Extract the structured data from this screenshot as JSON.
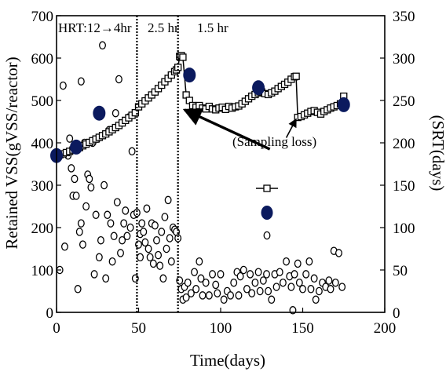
{
  "chart_data": {
    "type": "scatter",
    "xlabel": "Time(days)",
    "ylabel_left": "Retained VSS(gVSS/reactor)",
    "ylabel_right": "(SRT(days)",
    "xlim": [
      0,
      200
    ],
    "ylim_left": [
      0,
      700
    ],
    "ylim_right": [
      0,
      350
    ],
    "x_ticks": [
      0,
      50,
      100,
      150,
      200
    ],
    "y_left_ticks": [
      0,
      100,
      200,
      300,
      400,
      500,
      600,
      700
    ],
    "y_right_ticks": [
      0,
      50,
      100,
      150,
      200,
      250,
      300,
      350
    ],
    "grid": false,
    "phase_lines": [
      49,
      74
    ],
    "phase_labels": [
      "HRT:12→4hr",
      "2.5 hr",
      "1.5 hr"
    ],
    "annotation": "(Sampling loss)",
    "series": [
      {
        "marker": "open-square-line",
        "axis": "left",
        "points": [
          [
            0,
            370
          ],
          [
            2,
            372
          ],
          [
            4,
            374
          ],
          [
            6,
            377
          ],
          [
            8,
            380
          ],
          [
            10,
            383
          ],
          [
            12,
            386
          ],
          [
            14,
            389
          ],
          [
            16,
            393
          ],
          [
            18,
            397
          ],
          [
            20,
            401
          ],
          [
            22,
            405
          ],
          [
            24,
            409
          ],
          [
            26,
            413
          ],
          [
            28,
            417
          ],
          [
            30,
            421
          ],
          [
            32,
            426
          ],
          [
            34,
            431
          ],
          [
            36,
            436
          ],
          [
            38,
            441
          ],
          [
            40,
            447
          ],
          [
            42,
            453
          ],
          [
            44,
            459
          ],
          [
            46,
            465
          ],
          [
            48,
            471
          ],
          [
            50,
            485
          ],
          [
            52,
            492
          ],
          [
            54,
            499
          ],
          [
            56,
            506
          ],
          [
            58,
            513
          ],
          [
            60,
            520
          ],
          [
            62,
            528
          ],
          [
            64,
            536
          ],
          [
            66,
            544
          ],
          [
            68,
            552
          ],
          [
            70,
            560
          ],
          [
            72,
            568
          ],
          [
            73,
            572
          ],
          [
            74,
            578
          ],
          [
            75,
            604
          ],
          [
            76,
            606
          ],
          [
            77,
            602
          ],
          [
            79,
            513
          ],
          [
            81,
            500
          ],
          [
            83,
            488
          ],
          [
            85,
            484
          ],
          [
            87,
            488
          ],
          [
            89,
            482
          ],
          [
            91,
            480
          ],
          [
            93,
            486
          ],
          [
            95,
            480
          ],
          [
            97,
            478
          ],
          [
            99,
            482
          ],
          [
            101,
            484
          ],
          [
            103,
            479
          ],
          [
            105,
            486
          ],
          [
            107,
            482
          ],
          [
            109,
            485
          ],
          [
            111,
            487
          ],
          [
            113,
            492
          ],
          [
            115,
            498
          ],
          [
            117,
            504
          ],
          [
            119,
            510
          ],
          [
            121,
            514
          ],
          [
            123,
            518
          ],
          [
            125,
            520
          ],
          [
            127,
            516
          ],
          [
            129,
            514
          ],
          [
            131,
            518
          ],
          [
            133,
            522
          ],
          [
            135,
            528
          ],
          [
            137,
            533
          ],
          [
            139,
            538
          ],
          [
            141,
            543
          ],
          [
            143,
            550
          ],
          [
            145,
            556
          ],
          [
            146,
            557
          ],
          [
            147,
            460
          ],
          [
            149,
            462
          ],
          [
            151,
            466
          ],
          [
            153,
            470
          ],
          [
            155,
            474
          ],
          [
            157,
            476
          ],
          [
            159,
            472
          ],
          [
            161,
            468
          ],
          [
            163,
            474
          ],
          [
            165,
            478
          ],
          [
            167,
            482
          ],
          [
            169,
            485
          ],
          [
            171,
            488
          ],
          [
            173,
            492
          ],
          [
            175,
            510
          ]
        ]
      },
      {
        "marker": "filled-circle",
        "axis": "right",
        "points": [
          [
            0,
            185
          ],
          [
            12,
            195
          ],
          [
            26,
            235
          ],
          [
            81,
            280
          ],
          [
            123,
            265
          ],
          [
            175,
            245
          ]
        ]
      },
      {
        "marker": "open-circle",
        "axis": "left",
        "points": [
          [
            2,
            100
          ],
          [
            4,
            535
          ],
          [
            5,
            155
          ],
          [
            7,
            370
          ],
          [
            8,
            410
          ],
          [
            9,
            340
          ],
          [
            10,
            275
          ],
          [
            11,
            315
          ],
          [
            12,
            275
          ],
          [
            13,
            55
          ],
          [
            14,
            190
          ],
          [
            15,
            545
          ],
          [
            15,
            210
          ],
          [
            16,
            160
          ],
          [
            17,
            400
          ],
          [
            18,
            250
          ],
          [
            19,
            325
          ],
          [
            20,
            315
          ],
          [
            21,
            295
          ],
          [
            22,
            400
          ],
          [
            23,
            90
          ],
          [
            24,
            230
          ],
          [
            25,
            410
          ],
          [
            26,
            130
          ],
          [
            27,
            170
          ],
          [
            28,
            630
          ],
          [
            29,
            300
          ],
          [
            30,
            80
          ],
          [
            31,
            230
          ],
          [
            32,
            430
          ],
          [
            33,
            210
          ],
          [
            34,
            120
          ],
          [
            35,
            180
          ],
          [
            36,
            470
          ],
          [
            37,
            260
          ],
          [
            38,
            550
          ],
          [
            39,
            140
          ],
          [
            40,
            170
          ],
          [
            41,
            210
          ],
          [
            42,
            240
          ],
          [
            43,
            180
          ],
          [
            44,
            460
          ],
          [
            45,
            200
          ],
          [
            46,
            380
          ],
          [
            47,
            230
          ],
          [
            48,
            80
          ],
          [
            49,
            235
          ],
          [
            50,
            160
          ],
          [
            51,
            185
          ],
          [
            51,
            130
          ],
          [
            52,
            210
          ],
          [
            53,
            190
          ],
          [
            54,
            165
          ],
          [
            55,
            245
          ],
          [
            56,
            150
          ],
          [
            57,
            130
          ],
          [
            58,
            210
          ],
          [
            59,
            115
          ],
          [
            60,
            205
          ],
          [
            61,
            170
          ],
          [
            62,
            135
          ],
          [
            63,
            110
          ],
          [
            64,
            190
          ],
          [
            65,
            80
          ],
          [
            66,
            225
          ],
          [
            67,
            150
          ],
          [
            68,
            265
          ],
          [
            69,
            175
          ],
          [
            70,
            120
          ],
          [
            71,
            200
          ],
          [
            72,
            195
          ],
          [
            73,
            190
          ],
          [
            74,
            175
          ],
          [
            75,
            75
          ],
          [
            76,
            55
          ],
          [
            77,
            30
          ],
          [
            78,
            60
          ],
          [
            79,
            35
          ],
          [
            80,
            70
          ],
          [
            82,
            45
          ],
          [
            84,
            95
          ],
          [
            85,
            55
          ],
          [
            87,
            120
          ],
          [
            88,
            80
          ],
          [
            89,
            40
          ],
          [
            91,
            70
          ],
          [
            93,
            40
          ],
          [
            95,
            90
          ],
          [
            97,
            65
          ],
          [
            98,
            45
          ],
          [
            100,
            90
          ],
          [
            102,
            30
          ],
          [
            104,
            50
          ],
          [
            106,
            40
          ],
          [
            108,
            70
          ],
          [
            110,
            95
          ],
          [
            111,
            40
          ],
          [
            112,
            85
          ],
          [
            114,
            100
          ],
          [
            116,
            55
          ],
          [
            118,
            90
          ],
          [
            119,
            45
          ],
          [
            121,
            70
          ],
          [
            123,
            95
          ],
          [
            124,
            50
          ],
          [
            126,
            75
          ],
          [
            128,
            90
          ],
          [
            129,
            50
          ],
          [
            131,
            30
          ],
          [
            133,
            90
          ],
          [
            134,
            60
          ],
          [
            136,
            95
          ],
          [
            138,
            70
          ],
          [
            140,
            120
          ],
          [
            142,
            85
          ],
          [
            143,
            60
          ],
          [
            144,
            5
          ],
          [
            145,
            90
          ],
          [
            147,
            115
          ],
          [
            148,
            70
          ],
          [
            150,
            55
          ],
          [
            152,
            90
          ],
          [
            154,
            120
          ],
          [
            155,
            55
          ],
          [
            157,
            80
          ],
          [
            158,
            30
          ],
          [
            160,
            50
          ],
          [
            162,
            70
          ],
          [
            164,
            60
          ],
          [
            166,
            75
          ],
          [
            167,
            55
          ],
          [
            169,
            145
          ],
          [
            170,
            70
          ],
          [
            172,
            140
          ],
          [
            174,
            60
          ]
        ]
      }
    ],
    "legend_placement": "center-right"
  }
}
